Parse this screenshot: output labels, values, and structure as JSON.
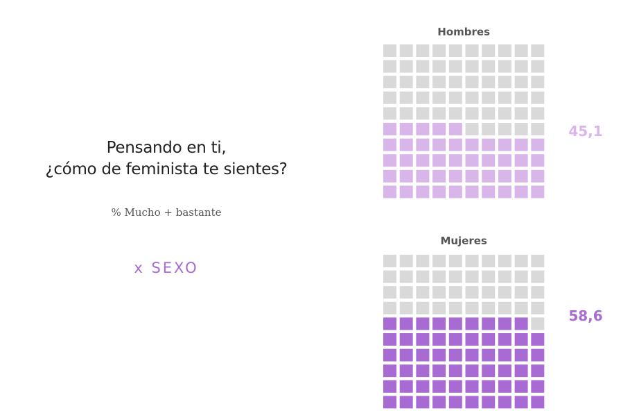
{
  "heading": {
    "line1": "Pensando en ti,",
    "line2": "¿cómo de feminista te sientes?",
    "note": "% Mucho + bastante",
    "segment": "x SEXO"
  },
  "colors": {
    "empty": "#d9d9d9",
    "hombres": "#d9b6ea",
    "mujeres": "#a86bd4",
    "segment": "#a86bd4"
  },
  "chart_data": [
    {
      "type": "waffle",
      "title": "Hombres",
      "value": 45.1,
      "value_label": "45,1",
      "grid": [
        10,
        10
      ],
      "filled_cells": 45,
      "fill": "#d9b6ea"
    },
    {
      "type": "waffle",
      "title": "Mujeres",
      "value": 58.6,
      "value_label": "58,6",
      "grid": [
        10,
        10
      ],
      "filled_cells": 59,
      "fill": "#a86bd4"
    }
  ]
}
